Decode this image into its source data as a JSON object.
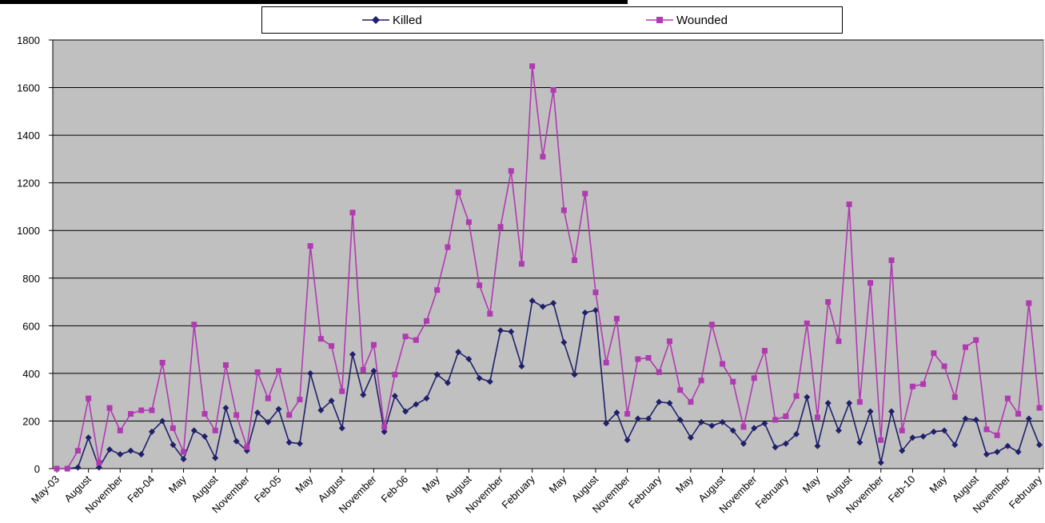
{
  "chart_data": {
    "type": "line",
    "title": "",
    "xlabel": "",
    "ylabel": "",
    "ylim": [
      0,
      1800
    ],
    "yticks": [
      0,
      200,
      400,
      600,
      800,
      1000,
      1200,
      1400,
      1600,
      1800
    ],
    "grid": true,
    "legend_position": "top",
    "x_tick_labels": [
      {
        "i": 0,
        "label": "May-03"
      },
      {
        "i": 3,
        "label": "August"
      },
      {
        "i": 6,
        "label": "November"
      },
      {
        "i": 9,
        "label": "Feb-04"
      },
      {
        "i": 12,
        "label": "May"
      },
      {
        "i": 15,
        "label": "August"
      },
      {
        "i": 18,
        "label": "November"
      },
      {
        "i": 21,
        "label": "Feb-05"
      },
      {
        "i": 24,
        "label": "May"
      },
      {
        "i": 27,
        "label": "August"
      },
      {
        "i": 30,
        "label": "November"
      },
      {
        "i": 33,
        "label": "Feb-06"
      },
      {
        "i": 36,
        "label": "May"
      },
      {
        "i": 39,
        "label": "August"
      },
      {
        "i": 42,
        "label": "November"
      },
      {
        "i": 45,
        "label": "February"
      },
      {
        "i": 48,
        "label": "May"
      },
      {
        "i": 51,
        "label": "August"
      },
      {
        "i": 54,
        "label": "November"
      },
      {
        "i": 57,
        "label": "February"
      },
      {
        "i": 60,
        "label": "May"
      },
      {
        "i": 63,
        "label": "August"
      },
      {
        "i": 66,
        "label": "November"
      },
      {
        "i": 69,
        "label": "February"
      },
      {
        "i": 72,
        "label": "May"
      },
      {
        "i": 75,
        "label": "August"
      },
      {
        "i": 78,
        "label": "November"
      },
      {
        "i": 81,
        "label": "Feb-10"
      },
      {
        "i": 84,
        "label": "May"
      },
      {
        "i": 87,
        "label": "August"
      },
      {
        "i": 90,
        "label": "November"
      },
      {
        "i": 93,
        "label": "February"
      }
    ],
    "series": [
      {
        "name": "Killed",
        "color": "#1f1f6b",
        "marker": "diamond",
        "values": [
          0,
          0,
          5,
          130,
          5,
          80,
          60,
          75,
          60,
          155,
          200,
          100,
          40,
          160,
          135,
          45,
          255,
          115,
          75,
          235,
          195,
          250,
          110,
          105,
          400,
          245,
          285,
          170,
          480,
          310,
          410,
          155,
          305,
          240,
          270,
          295,
          395,
          360,
          490,
          460,
          380,
          365,
          580,
          575,
          430,
          705,
          680,
          695,
          530,
          395,
          655,
          665,
          190,
          235,
          120,
          210,
          210,
          280,
          275,
          205,
          130,
          195,
          180,
          195,
          160,
          105,
          170,
          190,
          90,
          105,
          145,
          300,
          95,
          275,
          160,
          275,
          110,
          240,
          25,
          240,
          75,
          130,
          135,
          155,
          160,
          100,
          210,
          205,
          60,
          70,
          95,
          70,
          210,
          100
        ]
      },
      {
        "name": "Wounded",
        "color": "#b03ab0",
        "marker": "square",
        "values": [
          0,
          0,
          75,
          295,
          25,
          255,
          160,
          230,
          245,
          245,
          445,
          170,
          70,
          605,
          230,
          160,
          435,
          225,
          90,
          405,
          295,
          410,
          225,
          290,
          935,
          545,
          515,
          325,
          1075,
          415,
          520,
          175,
          395,
          555,
          540,
          620,
          750,
          930,
          1160,
          1035,
          770,
          650,
          1015,
          1250,
          860,
          1690,
          1310,
          1590,
          1085,
          875,
          1155,
          740,
          445,
          630,
          230,
          460,
          465,
          405,
          535,
          330,
          280,
          370,
          605,
          440,
          365,
          175,
          380,
          495,
          205,
          220,
          305,
          610,
          215,
          700,
          535,
          1110,
          280,
          780,
          120,
          875,
          160,
          345,
          355,
          485,
          430,
          300,
          510,
          540,
          165,
          140,
          295,
          230,
          695,
          255
        ]
      }
    ]
  }
}
